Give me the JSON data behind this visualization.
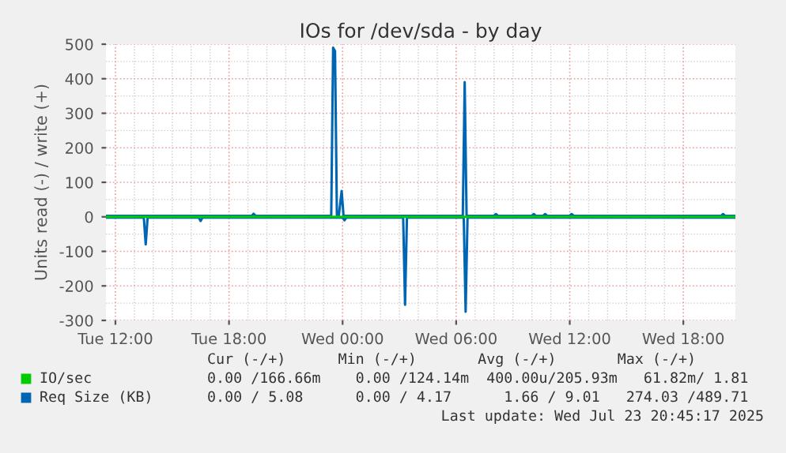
{
  "chart_data": {
    "type": "line",
    "title": "IOs for /dev/sda - by day",
    "ylabel": "Units read (-) / write (+)",
    "xlim": [
      "2025-07-22T11:30",
      "2025-07-23T20:45"
    ],
    "ylim": [
      -300,
      500
    ],
    "xticks": [
      {
        "value": "2025-07-22T12:00",
        "label": "Tue 12:00"
      },
      {
        "value": "2025-07-22T18:00",
        "label": "Tue 18:00"
      },
      {
        "value": "2025-07-23T00:00",
        "label": "Wed 00:00"
      },
      {
        "value": "2025-07-23T06:00",
        "label": "Wed 06:00"
      },
      {
        "value": "2025-07-23T12:00",
        "label": "Wed 12:00"
      },
      {
        "value": "2025-07-23T18:00",
        "label": "Wed 18:00"
      }
    ],
    "yticks": [
      -300,
      -200,
      -100,
      0,
      100,
      200,
      300,
      400,
      500
    ],
    "grid": true,
    "legend": "bottom",
    "series": [
      {
        "name": "IO/sec",
        "color": "#00cc00",
        "x": [
          "2025-07-22T11:30",
          "2025-07-23T20:45"
        ],
        "values": [
          0,
          0
        ]
      },
      {
        "name": "Req Size (KB)",
        "color": "#0066b3",
        "x": [
          "2025-07-22T11:30",
          "2025-07-22T19:12",
          "2025-07-22T19:18",
          "2025-07-22T19:24",
          "2025-07-22T23:24",
          "2025-07-22T23:30",
          "2025-07-22T23:36",
          "2025-07-22T23:42",
          "2025-07-22T23:48",
          "2025-07-22T23:57",
          "2025-07-23T00:03",
          "2025-07-23T00:12",
          "2025-07-23T06:21",
          "2025-07-23T06:27",
          "2025-07-23T06:33",
          "2025-07-23T06:42",
          "2025-07-23T08:00",
          "2025-07-23T08:06",
          "2025-07-23T08:12",
          "2025-07-23T10:00",
          "2025-07-23T10:06",
          "2025-07-23T10:12",
          "2025-07-23T10:36",
          "2025-07-23T10:42",
          "2025-07-23T10:48",
          "2025-07-23T12:00",
          "2025-07-23T12:06",
          "2025-07-23T12:12",
          "2025-07-23T20:00",
          "2025-07-23T20:06",
          "2025-07-23T20:12",
          "2025-07-23T20:45"
        ],
        "values": [
          3,
          3,
          9,
          3,
          3,
          490,
          480,
          5,
          3,
          75,
          3,
          3,
          3,
          390,
          3,
          3,
          3,
          8,
          3,
          3,
          8,
          3,
          3,
          8,
          3,
          3,
          8,
          3,
          3,
          8,
          3,
          3
        ]
      },
      {
        "color": "#0066b3",
        "x": [
          "2025-07-22T11:30",
          "2025-07-22T13:30",
          "2025-07-22T13:36",
          "2025-07-22T13:42",
          "2025-07-22T16:24",
          "2025-07-22T16:30",
          "2025-07-22T16:36",
          "2025-07-23T00:00",
          "2025-07-23T00:06",
          "2025-07-23T00:12",
          "2025-07-23T03:12",
          "2025-07-23T03:18",
          "2025-07-23T03:24",
          "2025-07-23T06:24",
          "2025-07-23T06:30",
          "2025-07-23T06:36",
          "2025-07-23T20:45"
        ],
        "values": [
          -2,
          -2,
          -80,
          -2,
          -2,
          -12,
          -2,
          -2,
          -10,
          -2,
          -2,
          -255,
          -2,
          -2,
          -275,
          -2,
          -2
        ]
      }
    ],
    "annotations": [
      "Cur (-/+)      Min (-/+)       Avg (-/+)       Max (-/+)",
      "0.00 /166.66m    0.00 /124.14m  400.00u/205.93m   61.82m/ 1.81",
      "0.00 / 5.08      0.00 / 4.17      1.66 / 9.01   274.03 /489.71",
      "Last update: Wed Jul 23 20:45:17 2025"
    ]
  }
}
